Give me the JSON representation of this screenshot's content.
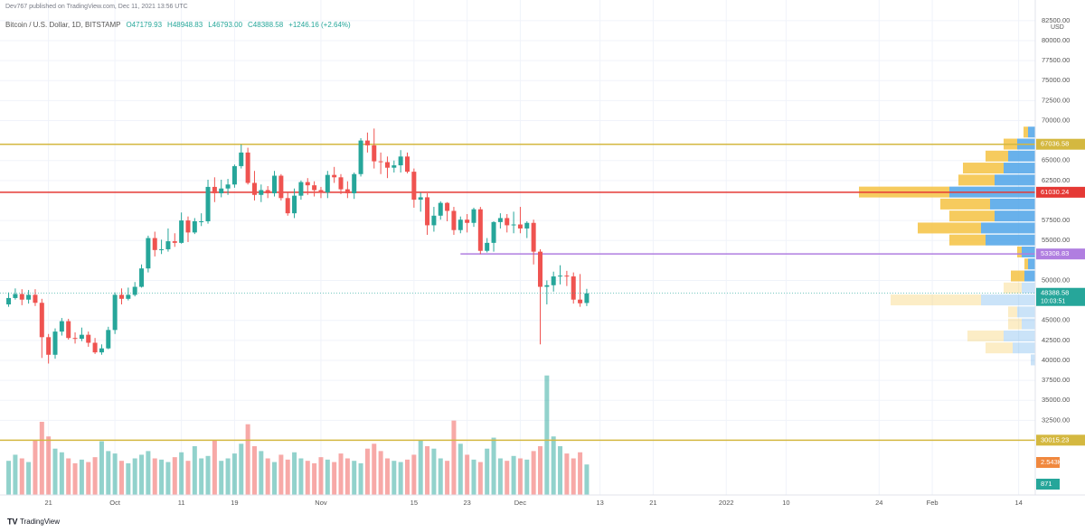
{
  "header": {
    "author": "Dev767 published on TradingView.com, Dec 11, 2021 13:56 UTC",
    "brand": "TradingView"
  },
  "chart_data": {
    "type": "candlestick",
    "title": "Bitcoin / U.S. Dollar, 1D, BITSTAMP",
    "ohlc_legend": [
      "O47179.93",
      "H48948.83",
      "L46793.00",
      "C48388.58",
      "+1246.16 (+2.64%)"
    ],
    "currency": "USD",
    "up_color": "#26a69a",
    "down_color": "#ef5350",
    "grid": true,
    "x": [
      -16,
      -15,
      -14,
      -13,
      -12,
      -11,
      -10,
      -9,
      -8,
      -7,
      -6,
      -5,
      -4,
      -3,
      -2,
      -1,
      0,
      1,
      2,
      3,
      4,
      5,
      6,
      7,
      8,
      9,
      10,
      11,
      12,
      13,
      14,
      15,
      16,
      17,
      18,
      19,
      20,
      21,
      22,
      23,
      24,
      25,
      26,
      27,
      28,
      29,
      30,
      31,
      32,
      33,
      34,
      35,
      36,
      37,
      38,
      39,
      40,
      41,
      42,
      43,
      44,
      45,
      46,
      47,
      48,
      49,
      50,
      51,
      52,
      53,
      54,
      55,
      56,
      57,
      58,
      59,
      60,
      61,
      62,
      63,
      64,
      65,
      66,
      67,
      68,
      69,
      70,
      71
    ],
    "open": [
      47000,
      47800,
      48300,
      47600,
      48200,
      47200,
      42900,
      40700,
      43600,
      44900,
      42800,
      42700,
      43200,
      42200,
      41000,
      41500,
      43800,
      48200,
      47700,
      48200,
      49200,
      51500,
      55300,
      53800,
      53900,
      54900,
      54700,
      57500,
      56000,
      57400,
      57400,
      61700,
      60900,
      61500,
      62000,
      64300,
      66000,
      62200,
      60700,
      61300,
      60900,
      63100,
      60300,
      58400,
      60600,
      62300,
      61900,
      61300,
      61000,
      63200,
      62900,
      61400,
      60900,
      63300,
      67500,
      66900,
      64900,
      64800,
      64100,
      64400,
      65500,
      63600,
      60100,
      60400,
      56900,
      58100,
      59700,
      58700,
      56300,
      57600,
      57200,
      58900,
      53700,
      54700,
      57300,
      57800,
      56900,
      57000,
      56500,
      57200,
      53600,
      49200,
      49400,
      50500,
      50600,
      50500,
      47600,
      47179.93
    ],
    "high": [
      48500,
      49000,
      48900,
      48800,
      48900,
      47700,
      43300,
      44000,
      45300,
      45200,
      43500,
      44100,
      43600,
      42800,
      42000,
      44200,
      48500,
      49000,
      49100,
      49800,
      52000,
      55600,
      56100,
      55100,
      56500,
      55900,
      58500,
      58000,
      57800,
      58400,
      62600,
      62900,
      62600,
      62700,
      64500,
      67000,
      66600,
      63700,
      62000,
      61800,
      63700,
      63300,
      61000,
      61500,
      62500,
      62800,
      62400,
      61700,
      63700,
      64200,
      63300,
      62400,
      63500,
      67800,
      68500,
      69000,
      66000,
      65500,
      65000,
      66300,
      66000,
      64000,
      61000,
      60900,
      59200,
      59900,
      59800,
      59200,
      58000,
      58300,
      59100,
      59200,
      55300,
      57400,
      58400,
      58300,
      58600,
      59200,
      57400,
      57600,
      53900,
      50000,
      51100,
      51900,
      51200,
      51000,
      50800,
      48948.83
    ],
    "low": [
      46700,
      47600,
      46900,
      47100,
      46800,
      40300,
      39600,
      40200,
      43100,
      42600,
      42100,
      42400,
      41700,
      40800,
      40700,
      41400,
      43300,
      47000,
      47500,
      48000,
      49100,
      51000,
      53000,
      53300,
      53600,
      54200,
      54600,
      54800,
      55800,
      56800,
      57100,
      59800,
      60400,
      60700,
      61600,
      64000,
      62000,
      60000,
      59800,
      60300,
      60500,
      60000,
      58100,
      57800,
      60100,
      60700,
      60500,
      60300,
      60300,
      62200,
      60800,
      60300,
      60200,
      63000,
      66000,
      64000,
      63300,
      62800,
      63500,
      63500,
      63400,
      59100,
      58600,
      55700,
      56100,
      57600,
      57400,
      55700,
      55900,
      56000,
      56700,
      53300,
      53500,
      53600,
      56500,
      56000,
      55900,
      55900,
      55300,
      52000,
      42000,
      47000,
      48600,
      49500,
      49300,
      47100,
      46700,
      46793
    ],
    "close": [
      47800,
      48300,
      47600,
      48200,
      47200,
      42900,
      40700,
      43600,
      44900,
      42800,
      42700,
      43200,
      42200,
      41000,
      41500,
      43800,
      48200,
      47700,
      48200,
      49200,
      51500,
      55300,
      53800,
      53900,
      54900,
      54700,
      57500,
      56000,
      57400,
      57400,
      61700,
      60900,
      61500,
      62000,
      64300,
      66000,
      62200,
      60700,
      61300,
      60900,
      63100,
      60300,
      58400,
      60600,
      62300,
      61900,
      61300,
      61000,
      63200,
      62900,
      61400,
      60900,
      63300,
      67500,
      66900,
      64900,
      64800,
      64100,
      64400,
      65500,
      63600,
      60100,
      60400,
      56900,
      58100,
      59700,
      58700,
      56300,
      57600,
      57200,
      58900,
      53700,
      54700,
      57300,
      57800,
      56900,
      57000,
      56500,
      57200,
      53600,
      49200,
      49400,
      50500,
      50600,
      50500,
      47600,
      47142,
      48388.58
    ],
    "volume": [
      28,
      33,
      30,
      27,
      45,
      60,
      48,
      38,
      35,
      30,
      26,
      29,
      27,
      31,
      44,
      36,
      34,
      28,
      26,
      30,
      33,
      36,
      30,
      29,
      27,
      31,
      35,
      28,
      40,
      30,
      32,
      45,
      28,
      30,
      34,
      42,
      58,
      40,
      36,
      30,
      27,
      33,
      29,
      35,
      30,
      28,
      26,
      31,
      29,
      27,
      34,
      30,
      28,
      26,
      38,
      42,
      36,
      30,
      28,
      27,
      29,
      33,
      45,
      40,
      38,
      30,
      28,
      61,
      42,
      33,
      29,
      27,
      38,
      47,
      30,
      28,
      32,
      30,
      29,
      36,
      40,
      98,
      48,
      40,
      34,
      30,
      35,
      25
    ],
    "volume_lim": [
      0,
      100
    ],
    "xlim": [
      -17.3,
      138.5
    ],
    "xticks": [
      {
        "value": -10,
        "label": "21"
      },
      {
        "value": 0,
        "label": "Oct"
      },
      {
        "value": 10,
        "label": "11"
      },
      {
        "value": 18,
        "label": "19"
      },
      {
        "value": 31,
        "label": "Nov"
      },
      {
        "value": 45,
        "label": "15"
      },
      {
        "value": 53,
        "label": "23"
      },
      {
        "value": 61,
        "label": "Dec"
      },
      {
        "value": 73,
        "label": "13"
      },
      {
        "value": 81,
        "label": "21"
      },
      {
        "value": 92,
        "label": "2022"
      },
      {
        "value": 101,
        "label": "10"
      },
      {
        "value": 115,
        "label": "24"
      },
      {
        "value": 123,
        "label": "Feb"
      },
      {
        "value": 136,
        "label": "14"
      }
    ],
    "ylim": [
      23160,
      83500
    ],
    "yticks": [
      {
        "value": 82500,
        "label": "82500.00"
      },
      {
        "value": 80000,
        "label": "80000.00"
      },
      {
        "value": 77500,
        "label": "77500.00"
      },
      {
        "value": 75000,
        "label": "75000.00"
      },
      {
        "value": 72500,
        "label": "72500.00"
      },
      {
        "value": 70000,
        "label": "70000.00"
      },
      {
        "value": 65000,
        "label": "65000.00"
      },
      {
        "value": 62500,
        "label": "62500.00"
      },
      {
        "value": 57500,
        "label": "57500.00"
      },
      {
        "value": 55000,
        "label": "55000.00"
      },
      {
        "value": 50000,
        "label": "50000.00"
      },
      {
        "value": 45000,
        "label": "45000.00"
      },
      {
        "value": 42500,
        "label": "42500.00"
      },
      {
        "value": 40000,
        "label": "40000.00"
      },
      {
        "value": 37500,
        "label": "37500.00"
      },
      {
        "value": 35000,
        "label": "35000.00"
      },
      {
        "value": 32500,
        "label": "32500.00"
      }
    ],
    "price_lines": [
      {
        "value": 67036.58,
        "label": "67036.58",
        "color": "#d4b840",
        "from": -17.3
      },
      {
        "value": 61030.24,
        "label": "61030.24",
        "color": "#e53935",
        "from": -17.3
      },
      {
        "value": 53308.83,
        "label": "53308.83",
        "color": "#b07ee0",
        "from": 52
      },
      {
        "value": 30015.23,
        "label": "30015.23",
        "color": "#d4b840",
        "from": -17.3
      }
    ],
    "last_price": {
      "value": 48388.58,
      "label": "48388.58",
      "countdown": "10:03:51",
      "color": "#26a69a"
    },
    "volume_badges": [
      {
        "label": "2.543K",
        "color": "#f0883e"
      },
      {
        "label": "871",
        "color": "#26a69a"
      }
    ],
    "volume_profile": {
      "up_color": "#4ea3e8",
      "down_color": "#f5c242",
      "value_area_low": 49800,
      "rows": [
        {
          "price": 68500,
          "up": 8,
          "down": 5
        },
        {
          "price": 67000,
          "up": 20,
          "down": 15
        },
        {
          "price": 65500,
          "up": 30,
          "down": 25
        },
        {
          "price": 64000,
          "up": 35,
          "down": 45
        },
        {
          "price": 62500,
          "up": 45,
          "down": 40
        },
        {
          "price": 61000,
          "up": 95,
          "down": 100
        },
        {
          "price": 59500,
          "up": 50,
          "down": 55
        },
        {
          "price": 58000,
          "up": 45,
          "down": 50
        },
        {
          "price": 56500,
          "up": 60,
          "down": 70
        },
        {
          "price": 55000,
          "up": 55,
          "down": 40
        },
        {
          "price": 53500,
          "up": 15,
          "down": 5
        },
        {
          "price": 52000,
          "up": 8,
          "down": 4
        },
        {
          "price": 50500,
          "up": 12,
          "down": 15
        },
        {
          "price": 49000,
          "up": 15,
          "down": 20
        },
        {
          "price": 47500,
          "up": 60,
          "down": 100
        },
        {
          "price": 46000,
          "up": 20,
          "down": 10
        },
        {
          "price": 44500,
          "up": 15,
          "down": 15
        },
        {
          "price": 43000,
          "up": 35,
          "down": 40
        },
        {
          "price": 41500,
          "up": 25,
          "down": 30
        },
        {
          "price": 40000,
          "up": 5,
          "down": 0
        }
      ]
    }
  }
}
